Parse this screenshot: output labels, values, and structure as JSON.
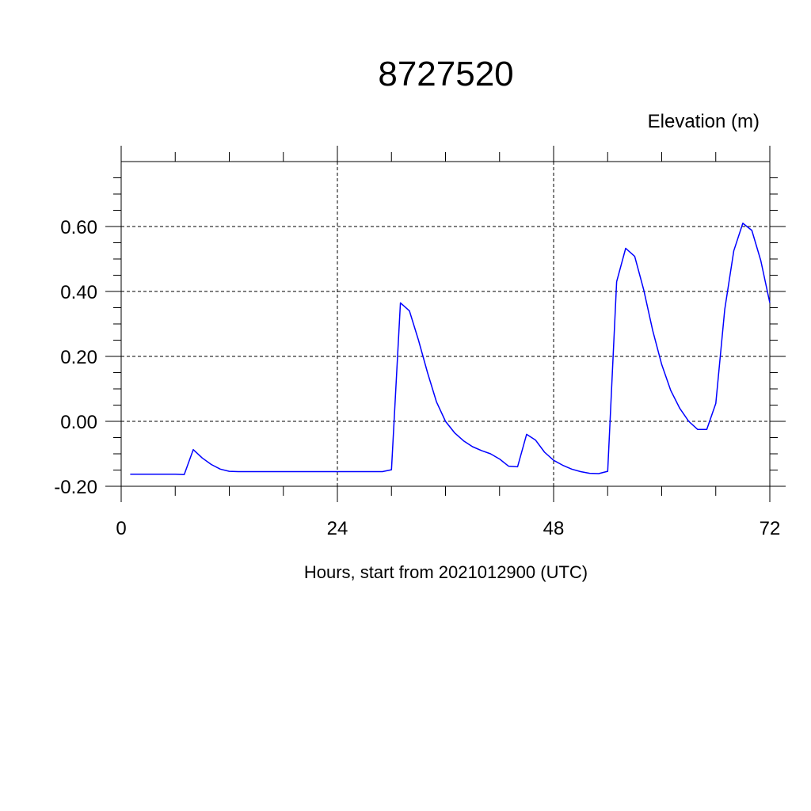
{
  "chart_data": {
    "type": "line",
    "title": "8727520",
    "units_label": "Elevation (m)",
    "xlabel": "Hours, start from 2021012900 (UTC)",
    "xlim": [
      0,
      72
    ],
    "ylim": [
      -0.2,
      0.8
    ],
    "xticks": [
      0,
      24,
      48,
      72
    ],
    "xtick_labels": [
      "0",
      "24",
      "48",
      "72"
    ],
    "yticks": [
      -0.2,
      0.0,
      0.2,
      0.4,
      0.6
    ],
    "ytick_labels": [
      "-0.20",
      "0.00",
      "0.20",
      "0.40",
      "0.60"
    ],
    "grid": true,
    "line_color": "#0000ff",
    "series": [
      {
        "x": [
          1,
          2,
          3,
          4,
          5,
          6,
          7,
          8,
          9,
          10,
          11,
          12,
          13,
          14,
          16,
          18,
          20,
          22,
          24,
          26,
          28,
          29,
          30,
          31,
          32,
          33,
          34,
          35,
          36,
          37,
          38,
          39,
          40,
          41,
          42,
          43,
          44,
          45,
          46,
          47,
          48,
          49,
          50,
          51,
          52,
          53,
          54,
          55,
          56,
          57,
          58,
          59,
          60,
          61,
          62,
          63,
          64,
          65,
          66,
          67,
          68,
          69,
          70,
          71,
          72
        ],
        "y": [
          -0.163,
          -0.163,
          -0.163,
          -0.163,
          -0.163,
          -0.163,
          -0.164,
          -0.087,
          -0.113,
          -0.133,
          -0.147,
          -0.154,
          -0.155,
          -0.155,
          -0.155,
          -0.155,
          -0.155,
          -0.155,
          -0.155,
          -0.155,
          -0.155,
          -0.155,
          -0.149,
          0.365,
          0.34,
          0.25,
          0.15,
          0.06,
          0.0,
          -0.035,
          -0.06,
          -0.078,
          -0.09,
          -0.1,
          -0.116,
          -0.138,
          -0.14,
          -0.04,
          -0.058,
          -0.095,
          -0.12,
          -0.135,
          -0.147,
          -0.155,
          -0.16,
          -0.161,
          -0.154,
          0.43,
          0.533,
          0.508,
          0.405,
          0.28,
          0.175,
          0.095,
          0.04,
          0.0,
          -0.025,
          -0.025,
          0.055,
          0.345,
          0.525,
          0.61,
          0.588,
          0.495,
          0.365
        ]
      }
    ]
  }
}
